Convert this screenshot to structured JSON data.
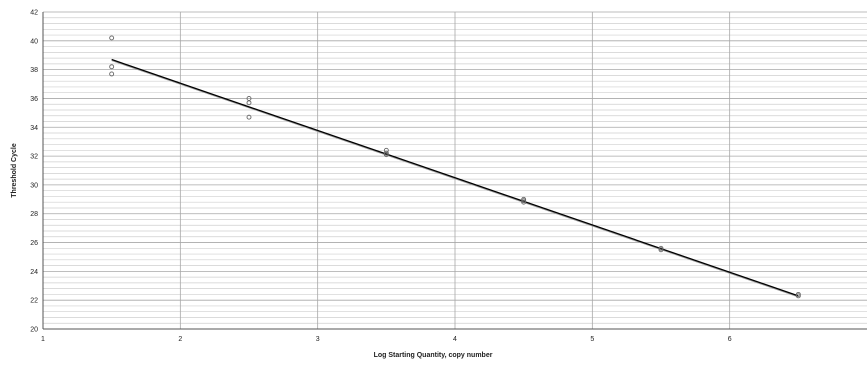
{
  "chart_data": {
    "type": "scatter",
    "title": "",
    "xlabel": "Log Starting Quantity, copy number",
    "ylabel": "Threshold Cycle",
    "xlim": [
      1,
      7
    ],
    "ylim": [
      20,
      42
    ],
    "x_ticks": [
      1,
      2,
      3,
      4,
      5,
      6
    ],
    "y_ticks": [
      20,
      22,
      24,
      26,
      28,
      30,
      32,
      34,
      36,
      38,
      40,
      42
    ],
    "grid": {
      "major_x": true,
      "major_y": true,
      "minor_y_step": 0.4
    },
    "legend": "none",
    "colors": {
      "points": "#666666",
      "line": "#000000",
      "grid_major": "#a8a8a8",
      "grid_minor": "#cfcfcf"
    },
    "points": [
      {
        "x": 1.5,
        "y": 40.2
      },
      {
        "x": 1.5,
        "y": 38.2
      },
      {
        "x": 1.5,
        "y": 37.7
      },
      {
        "x": 2.5,
        "y": 36.0
      },
      {
        "x": 2.5,
        "y": 35.7
      },
      {
        "x": 2.5,
        "y": 34.7
      },
      {
        "x": 3.5,
        "y": 32.4
      },
      {
        "x": 3.5,
        "y": 32.2
      },
      {
        "x": 3.5,
        "y": 32.1
      },
      {
        "x": 4.5,
        "y": 29.0
      },
      {
        "x": 4.5,
        "y": 28.9
      },
      {
        "x": 4.5,
        "y": 28.8
      },
      {
        "x": 5.5,
        "y": 25.6
      },
      {
        "x": 5.5,
        "y": 25.5
      },
      {
        "x": 6.5,
        "y": 22.4
      },
      {
        "x": 6.5,
        "y": 22.3
      }
    ],
    "fit_line": {
      "x": [
        1.5,
        6.5
      ],
      "y": [
        38.7,
        22.3
      ]
    }
  }
}
